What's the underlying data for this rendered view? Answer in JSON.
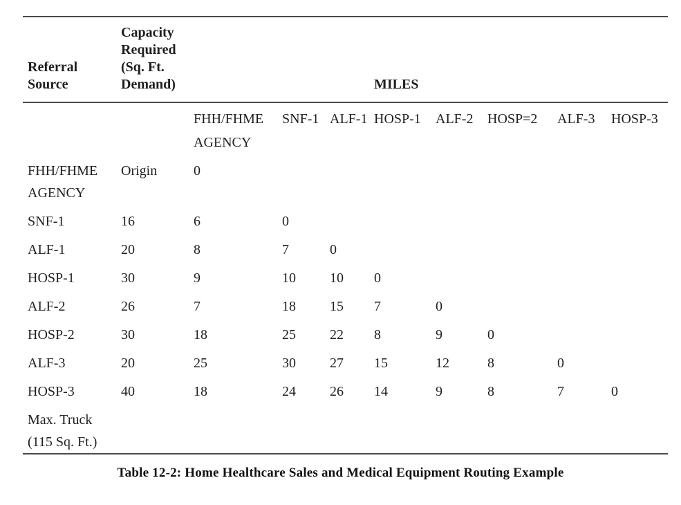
{
  "page": {
    "background": "#ffffff",
    "text_color": "#1f1f1f",
    "rule_color": "#4a4a4a"
  },
  "caption": "Table 12-2: Home Healthcare Sales and Medical Equipment Routing Example",
  "table": {
    "group_headers": {
      "referral_source": "Referral Source",
      "capacity_required": "Capacity Required (Sq. Ft. Demand)",
      "miles": "MILES"
    },
    "column_headers": [
      "FHH/FHME AGENCY",
      "SNF-1",
      "ALF-1",
      "HOSP-1",
      "ALF-2",
      "HOSP=2",
      "ALF-3",
      "HOSP-3"
    ],
    "rows": [
      {
        "source": "FHH/FHME AGENCY",
        "capacity": "Origin",
        "miles": [
          "0",
          "",
          "",
          "",
          "",
          "",
          "",
          ""
        ]
      },
      {
        "source": "SNF-1",
        "capacity": "16",
        "miles": [
          "6",
          "0",
          "",
          "",
          "",
          "",
          "",
          ""
        ]
      },
      {
        "source": "ALF-1",
        "capacity": "20",
        "miles": [
          "8",
          "7",
          "0",
          "",
          "",
          "",
          "",
          ""
        ]
      },
      {
        "source": "HOSP-1",
        "capacity": "30",
        "miles": [
          "9",
          "10",
          "10",
          "0",
          "",
          "",
          "",
          ""
        ]
      },
      {
        "source": "ALF-2",
        "capacity": "26",
        "miles": [
          "7",
          "18",
          "15",
          "7",
          "0",
          "",
          "",
          ""
        ]
      },
      {
        "source": "HOSP-2",
        "capacity": "30",
        "miles": [
          "18",
          "25",
          "22",
          "8",
          "9",
          "0",
          "",
          ""
        ]
      },
      {
        "source": "ALF-3",
        "capacity": "20",
        "miles": [
          "25",
          "30",
          "27",
          "15",
          "12",
          "8",
          "0",
          ""
        ]
      },
      {
        "source": "HOSP-3",
        "capacity": "40",
        "miles": [
          "18",
          "24",
          "26",
          "14",
          "9",
          "8",
          "7",
          "0"
        ]
      },
      {
        "source": "Max. Truck (115 Sq. Ft.)",
        "capacity": "",
        "miles": [
          "",
          "",
          "",
          "",
          "",
          "",
          "",
          ""
        ]
      }
    ]
  }
}
